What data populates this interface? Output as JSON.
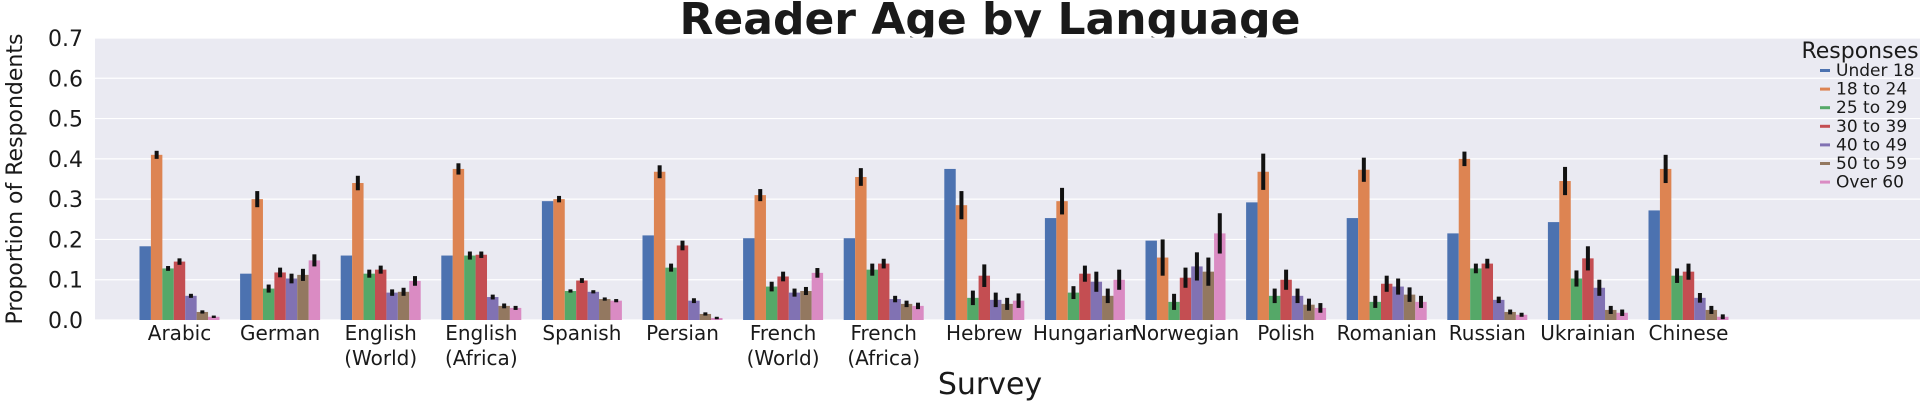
{
  "chart_data": {
    "type": "bar",
    "title": "Reader Age by Language",
    "xlabel": "Survey",
    "ylabel": "Proportion of Respondents",
    "ylim": [
      0,
      0.7
    ],
    "yticks": [
      "0.0",
      "0.1",
      "0.2",
      "0.3",
      "0.4",
      "0.5",
      "0.6",
      "0.7"
    ],
    "grid": true,
    "legend": {
      "title": "Responses",
      "placement": "top-right"
    },
    "categories": [
      [
        "Arabic"
      ],
      [
        "German"
      ],
      [
        "English",
        "(World)"
      ],
      [
        "English",
        "(Africa)"
      ],
      [
        "Spanish"
      ],
      [
        "Persian"
      ],
      [
        "French",
        "(World)"
      ],
      [
        "French",
        "(Africa)"
      ],
      [
        "Hebrew"
      ],
      [
        "Hungarian"
      ],
      [
        "Norwegian"
      ],
      [
        "Polish"
      ],
      [
        "Romanian"
      ],
      [
        "Russian"
      ],
      [
        "Ukrainian"
      ],
      [
        "Chinese"
      ]
    ],
    "series": [
      {
        "name": "Under 18",
        "color": "#4c72b0",
        "values": [
          0.183,
          0.115,
          0.16,
          0.16,
          0.295,
          0.21,
          0.203,
          0.203,
          0.375,
          0.253,
          0.197,
          0.292,
          0.253,
          0.215,
          0.243,
          0.272
        ],
        "errors": [
          0,
          0,
          0,
          0,
          0,
          0,
          0,
          0,
          0,
          0,
          0,
          0,
          0,
          0,
          0,
          0
        ]
      },
      {
        "name": "18 to 24",
        "color": "#dd8452",
        "values": [
          0.41,
          0.3,
          0.34,
          0.375,
          0.3,
          0.368,
          0.31,
          0.355,
          0.285,
          0.295,
          0.155,
          0.368,
          0.373,
          0.4,
          0.345,
          0.375
        ],
        "errors": [
          0.01,
          0.02,
          0.018,
          0.014,
          0.008,
          0.016,
          0.015,
          0.022,
          0.035,
          0.033,
          0.045,
          0.045,
          0.03,
          0.018,
          0.035,
          0.035
        ]
      },
      {
        "name": "25 to 29",
        "color": "#55a868",
        "values": [
          0.128,
          0.078,
          0.115,
          0.16,
          0.072,
          0.13,
          0.083,
          0.125,
          0.055,
          0.068,
          0.045,
          0.06,
          0.045,
          0.128,
          0.103,
          0.11
        ],
        "errors": [
          0.006,
          0.01,
          0.01,
          0.01,
          0.004,
          0.01,
          0.012,
          0.015,
          0.018,
          0.016,
          0.02,
          0.018,
          0.015,
          0.012,
          0.02,
          0.018
        ]
      },
      {
        "name": "30 to 39",
        "color": "#c44e52",
        "values": [
          0.145,
          0.118,
          0.125,
          0.162,
          0.098,
          0.185,
          0.108,
          0.14,
          0.11,
          0.115,
          0.105,
          0.1,
          0.09,
          0.14,
          0.153,
          0.12
        ],
        "errors": [
          0.008,
          0.012,
          0.01,
          0.008,
          0.006,
          0.012,
          0.012,
          0.012,
          0.028,
          0.02,
          0.025,
          0.025,
          0.02,
          0.012,
          0.03,
          0.02
        ]
      },
      {
        "name": "40 to 49",
        "color": "#8172b3",
        "values": [
          0.06,
          0.103,
          0.068,
          0.057,
          0.07,
          0.048,
          0.068,
          0.052,
          0.05,
          0.095,
          0.133,
          0.06,
          0.083,
          0.05,
          0.08,
          0.055
        ],
        "errors": [
          0.005,
          0.012,
          0.008,
          0.006,
          0.004,
          0.006,
          0.01,
          0.008,
          0.018,
          0.025,
          0.035,
          0.018,
          0.02,
          0.008,
          0.02,
          0.012
        ]
      },
      {
        "name": "50 to 59",
        "color": "#937860",
        "values": [
          0.02,
          0.112,
          0.07,
          0.035,
          0.052,
          0.015,
          0.072,
          0.04,
          0.04,
          0.06,
          0.12,
          0.038,
          0.063,
          0.02,
          0.025,
          0.025
        ],
        "errors": [
          0.004,
          0.015,
          0.01,
          0.006,
          0.004,
          0.004,
          0.01,
          0.008,
          0.015,
          0.018,
          0.035,
          0.015,
          0.018,
          0.006,
          0.01,
          0.01
        ]
      },
      {
        "name": "Over 60",
        "color": "#da8bc3",
        "values": [
          0.008,
          0.148,
          0.097,
          0.03,
          0.048,
          0.005,
          0.117,
          0.035,
          0.048,
          0.1,
          0.215,
          0.03,
          0.045,
          0.013,
          0.018,
          0.008
        ],
        "errors": [
          0.003,
          0.015,
          0.012,
          0.005,
          0.004,
          0.003,
          0.012,
          0.008,
          0.018,
          0.025,
          0.05,
          0.012,
          0.015,
          0.005,
          0.008,
          0.006
        ]
      }
    ]
  }
}
